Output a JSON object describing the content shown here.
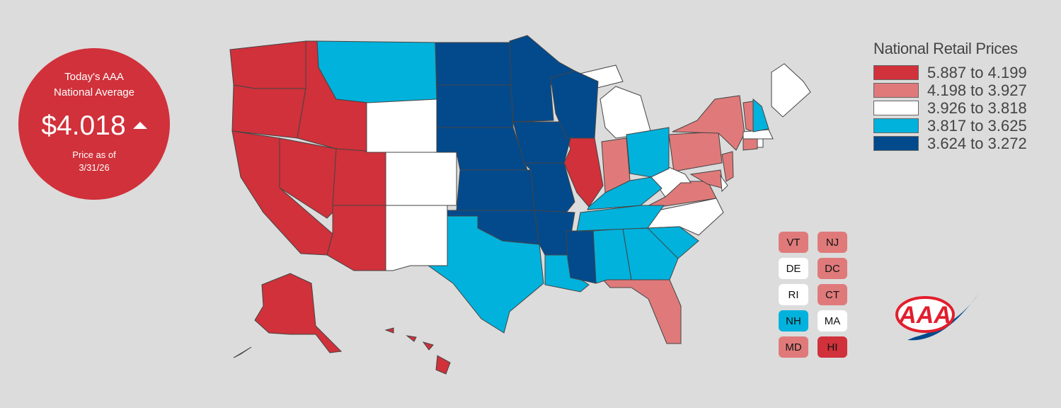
{
  "national_average": {
    "heading_line1": "Today's AAA",
    "heading_line2": "National Average",
    "price": "$4.018",
    "trend": "up",
    "date_label": "Price as of",
    "date": "3/31/26"
  },
  "legend": {
    "title": "National Retail Prices",
    "ranges": [
      {
        "label": "5.887 to 4.199",
        "color": "#d0313a"
      },
      {
        "label": "4.198 to 3.927",
        "color": "#e07a7a"
      },
      {
        "label": "3.926 to 3.818",
        "color": "#ffffff"
      },
      {
        "label": "3.817 to 3.625",
        "color": "#00b2dc"
      },
      {
        "label": "3.624 to 3.272",
        "color": "#034a8c"
      }
    ]
  },
  "small_states": [
    {
      "abbr": "VT",
      "tier": 1
    },
    {
      "abbr": "NJ",
      "tier": 1
    },
    {
      "abbr": "DE",
      "tier": 2
    },
    {
      "abbr": "DC",
      "tier": 1
    },
    {
      "abbr": "RI",
      "tier": 2
    },
    {
      "abbr": "CT",
      "tier": 1
    },
    {
      "abbr": "NH",
      "tier": 3
    },
    {
      "abbr": "MA",
      "tier": 2
    },
    {
      "abbr": "MD",
      "tier": 1
    },
    {
      "abbr": "HI",
      "tier": 0
    }
  ],
  "states": {
    "WA": 0,
    "OR": 0,
    "CA": 0,
    "NV": 0,
    "ID": 0,
    "UT": 0,
    "AZ": 0,
    "IL": 0,
    "AK": 0,
    "HI": 0,
    "IN": 1,
    "PA": 1,
    "NY": 1,
    "VA": 1,
    "MD": 1,
    "NJ": 1,
    "VT": 1,
    "CT": 1,
    "FL": 1,
    "WY": 2,
    "CO": 2,
    "NM": 2,
    "MI": 2,
    "WV": 2,
    "NC": 2,
    "ME": 2,
    "MA": 2,
    "RI": 2,
    "DE": 2,
    "MT": 3,
    "TX": 3,
    "LA": 3,
    "AL": 3,
    "GA": 3,
    "SC": 3,
    "TN": 3,
    "KY": 3,
    "OH": 3,
    "NH": 3,
    "ND": 4,
    "SD": 4,
    "NE": 4,
    "KS": 4,
    "OK": 4,
    "MN": 4,
    "IA": 4,
    "MO": 4,
    "AR": 4,
    "WI": 4,
    "MS": 4
  },
  "logo": {
    "text": "AAA"
  }
}
